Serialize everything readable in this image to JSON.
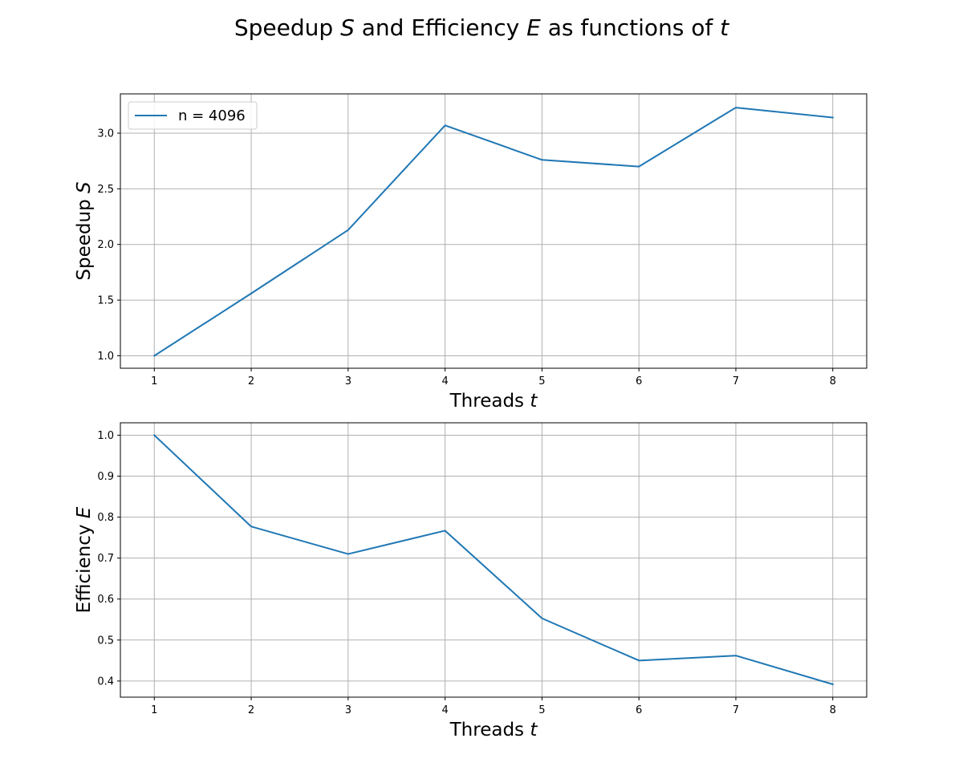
{
  "figure": {
    "title_prefix": "Speedup ",
    "title_var1": "S",
    "title_mid": " and Efficiency ",
    "title_var2": "E",
    "title_suffix": " as functions of ",
    "title_var3": "t"
  },
  "chart_data": [
    {
      "type": "line",
      "title": "",
      "xlabel_text": "Threads ",
      "xlabel_var": "t",
      "ylabel_text": "Speedup ",
      "ylabel_var": "S",
      "x": [
        1,
        2,
        3,
        4,
        5,
        6,
        7,
        8
      ],
      "xlim": [
        0.65,
        8.35
      ],
      "ylim": [
        0.888,
        3.353
      ],
      "xticks": [
        "1",
        "2",
        "3",
        "4",
        "5",
        "6",
        "7",
        "8"
      ],
      "yticks": [
        "1.0",
        "1.5",
        "2.0",
        "2.5",
        "3.0"
      ],
      "grid": true,
      "legend": "upper left",
      "series": [
        {
          "name": "n = 4096",
          "color": "#1f77b4",
          "values": [
            1.0,
            1.56,
            2.13,
            3.07,
            2.76,
            2.7,
            3.23,
            3.14
          ]
        }
      ]
    },
    {
      "type": "line",
      "title": "",
      "xlabel_text": "Threads ",
      "xlabel_var": "t",
      "ylabel_text": "Efficiency ",
      "ylabel_var": "E",
      "x": [
        1,
        2,
        3,
        4,
        5,
        6,
        7,
        8
      ],
      "xlim": [
        0.65,
        8.35
      ],
      "ylim": [
        0.3606,
        1.0303
      ],
      "xticks": [
        "1",
        "2",
        "3",
        "4",
        "5",
        "6",
        "7",
        "8"
      ],
      "yticks": [
        "0.4",
        "0.5",
        "0.6",
        "0.7",
        "0.8",
        "0.9",
        "1.0"
      ],
      "grid": true,
      "legend": "none",
      "series": [
        {
          "color": "#1f77b4",
          "values": [
            1.0,
            0.777,
            0.71,
            0.767,
            0.553,
            0.45,
            0.462,
            0.392
          ]
        }
      ]
    }
  ]
}
